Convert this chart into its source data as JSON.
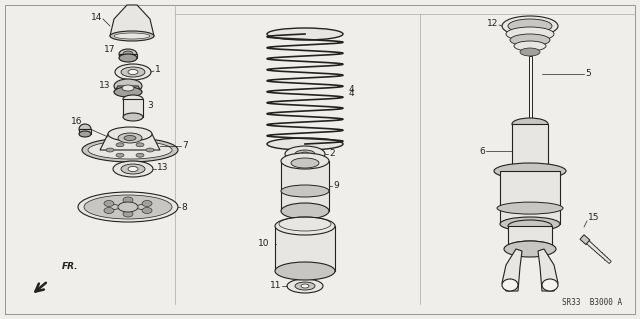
{
  "bg_color": "#f0eeea",
  "line_color": "#222222",
  "diagram_code": "SR33  B3000 A",
  "fig_width": 6.4,
  "fig_height": 3.19
}
